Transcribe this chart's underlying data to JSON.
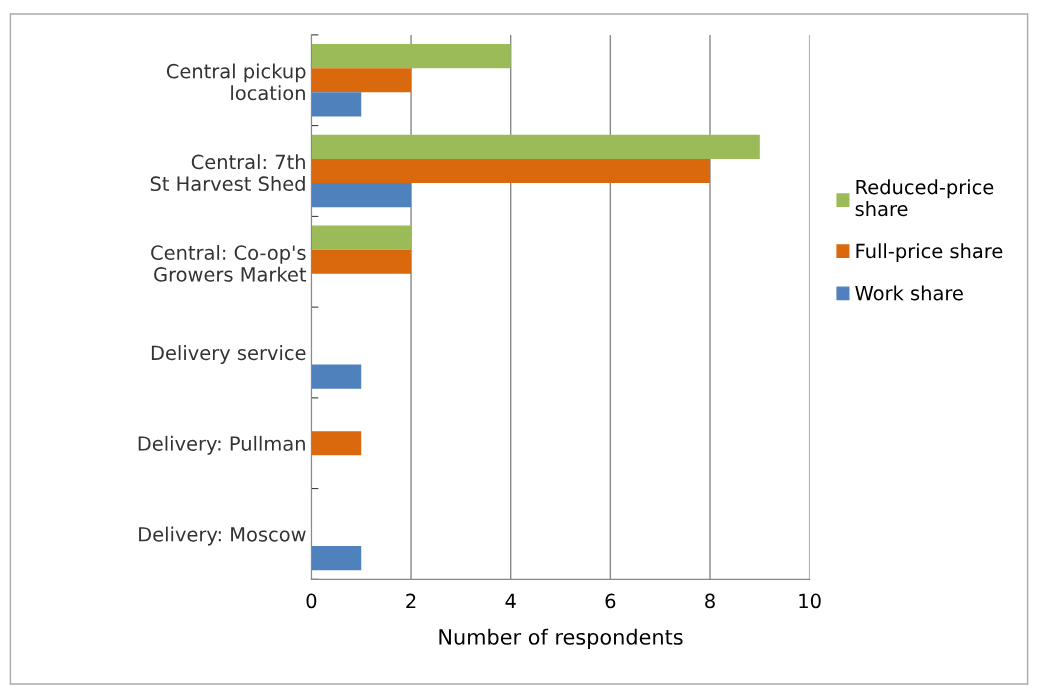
{
  "chart_data": {
    "type": "bar",
    "orientation": "horizontal",
    "xlabel": "Number of respondents",
    "categories": [
      "Central pickup location",
      "Central: 7th St Harvest Shed",
      "Central: Co-op's Growers Market",
      "Delivery service",
      "Delivery: Pullman",
      "Delivery: Moscow"
    ],
    "series": [
      {
        "name": "Reduced-price share",
        "color": "#9bbb59",
        "values": [
          4,
          9,
          2,
          0,
          0,
          0
        ]
      },
      {
        "name": "Full-price share",
        "color": "#d9690c",
        "values": [
          2,
          8,
          2,
          0,
          1,
          0
        ]
      },
      {
        "name": "Work share",
        "color": "#4f81bd",
        "values": [
          1,
          2,
          0,
          1,
          0,
          1
        ]
      }
    ],
    "xlim": [
      0,
      10
    ],
    "xticks": [
      0,
      2,
      4,
      6,
      8,
      10
    ],
    "grid": "x",
    "legend": "right"
  }
}
